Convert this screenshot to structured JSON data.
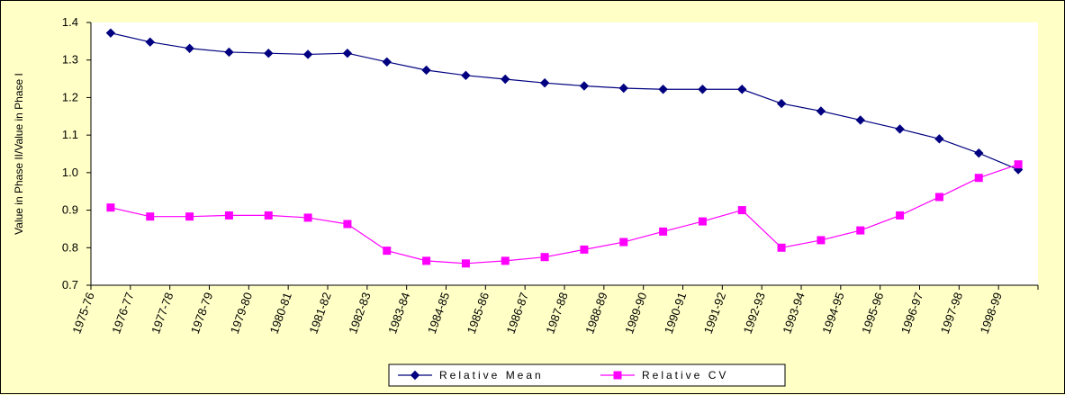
{
  "chart_data": {
    "type": "line",
    "ylabel": "Value in Phase II/Value in Phase I",
    "xlabel": "",
    "ylim": [
      0.7,
      1.4
    ],
    "y_ticks": [
      "0.7",
      "0.8",
      "0.9",
      "1.0",
      "1.1",
      "1.2",
      "1.3",
      "1.4"
    ],
    "categories": [
      "1975-76",
      "1976-77",
      "1977-78",
      "1978-79",
      "1979-80",
      "1980-81",
      "1981-82",
      "1982-83",
      "1983-84",
      "1984-85",
      "1985-86",
      "1986-87",
      "1987-88",
      "1988-89",
      "1989-90",
      "1990-91",
      "1991-92",
      "1992-93",
      "1993-94",
      "1994-95",
      "1995-96",
      "1996-97",
      "1997-98",
      "1998-99"
    ],
    "grid": false,
    "legend_position": "bottom",
    "series": [
      {
        "name": "Relative Mean",
        "color": "#000080",
        "marker": "diamond",
        "values": [
          1.372,
          1.348,
          1.331,
          1.321,
          1.318,
          1.315,
          1.318,
          1.295,
          1.273,
          1.259,
          1.249,
          1.239,
          1.231,
          1.225,
          1.222,
          1.222,
          1.222,
          1.184,
          1.164,
          1.14,
          1.116,
          1.09,
          1.052,
          1.008
        ]
      },
      {
        "name": "Relative CV",
        "color": "#ff00ff",
        "marker": "square",
        "values": [
          0.907,
          0.883,
          0.883,
          0.886,
          0.886,
          0.88,
          0.863,
          0.792,
          0.765,
          0.758,
          0.765,
          0.775,
          0.795,
          0.815,
          0.843,
          0.87,
          0.9,
          0.8,
          0.82,
          0.846,
          0.886,
          0.935,
          0.986,
          1.022
        ]
      }
    ]
  }
}
